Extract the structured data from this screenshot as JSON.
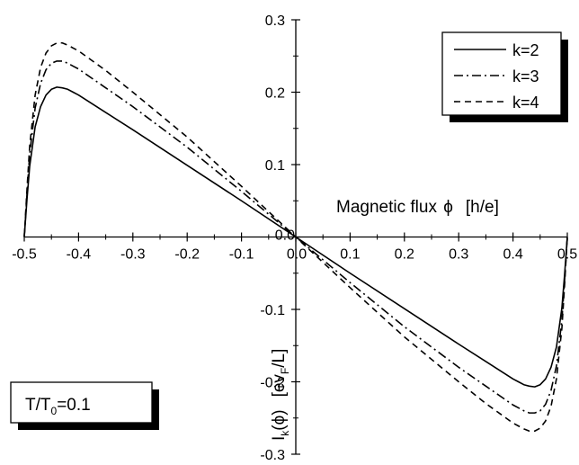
{
  "chart_data": {
    "type": "line",
    "xlim": [
      -0.5,
      0.5
    ],
    "ylim": [
      -0.3,
      0.3
    ],
    "x_ticks": [
      "-0.5",
      "-0.4",
      "-0.3",
      "-0.2",
      "-0.1",
      "0.0",
      "0.1",
      "0.2",
      "0.3",
      "0.4",
      "0.5"
    ],
    "y_ticks": [
      "-0.3",
      "-0.2",
      "-0.1",
      "0.0",
      "0.1",
      "0.2",
      "0.3"
    ],
    "x_tick_values": [
      -0.5,
      -0.4,
      -0.3,
      -0.2,
      -0.1,
      0.0,
      0.1,
      0.2,
      0.3,
      0.4,
      0.5
    ],
    "y_tick_values": [
      -0.3,
      -0.2,
      -0.1,
      0.0,
      0.1,
      0.2,
      0.3
    ],
    "xlabel": {
      "main": "Magnetic flux ",
      "symbol": "ϕ",
      "unit": "[h/e]"
    },
    "ylabel": {
      "main": "I",
      "sub": "k",
      "paren": "(ϕ)",
      "unit_open": "[ev",
      "unit_sub": "F",
      "unit_close": "/L]"
    },
    "annotation": {
      "lead": "T/T",
      "sub": "0",
      "tail": "=0.1"
    },
    "legend_position": "top-right",
    "grid": false,
    "series": [
      {
        "name": "k=2",
        "style": "solid",
        "color": "#000000",
        "x": [
          -0.5,
          -0.495,
          -0.49,
          -0.48,
          -0.47,
          -0.46,
          -0.45,
          -0.44,
          -0.43,
          -0.42,
          -0.41,
          -0.4,
          -0.35,
          -0.3,
          -0.2,
          -0.1,
          0.0,
          0.1,
          0.2,
          0.3,
          0.35,
          0.4,
          0.41,
          0.42,
          0.43,
          0.44,
          0.45,
          0.46,
          0.47,
          0.48,
          0.49,
          0.495,
          0.5
        ],
        "y": [
          0.0,
          0.052,
          0.098,
          0.152,
          0.18,
          0.196,
          0.204,
          0.207,
          0.206,
          0.204,
          0.2,
          0.196,
          0.172,
          0.148,
          0.099,
          0.05,
          0.0,
          -0.05,
          -0.099,
          -0.148,
          -0.172,
          -0.196,
          -0.2,
          -0.204,
          -0.206,
          -0.207,
          -0.204,
          -0.196,
          -0.18,
          -0.152,
          -0.098,
          -0.052,
          0.0
        ]
      },
      {
        "name": "k=3",
        "style": "dashdot",
        "color": "#000000",
        "x": [
          -0.5,
          -0.495,
          -0.49,
          -0.48,
          -0.47,
          -0.46,
          -0.45,
          -0.44,
          -0.43,
          -0.42,
          -0.41,
          -0.4,
          -0.35,
          -0.3,
          -0.2,
          -0.1,
          0.0,
          0.1,
          0.2,
          0.3,
          0.35,
          0.4,
          0.41,
          0.42,
          0.43,
          0.44,
          0.45,
          0.46,
          0.47,
          0.48,
          0.49,
          0.495,
          0.5
        ],
        "y": [
          0.0,
          0.06,
          0.115,
          0.178,
          0.212,
          0.231,
          0.24,
          0.243,
          0.243,
          0.24,
          0.236,
          0.232,
          0.206,
          0.18,
          0.124,
          0.063,
          0.0,
          -0.063,
          -0.124,
          -0.18,
          -0.206,
          -0.232,
          -0.236,
          -0.24,
          -0.243,
          -0.243,
          -0.24,
          -0.231,
          -0.212,
          -0.178,
          -0.115,
          -0.06,
          0.0
        ]
      },
      {
        "name": "k=4",
        "style": "dashed",
        "color": "#000000",
        "x": [
          -0.5,
          -0.495,
          -0.49,
          -0.48,
          -0.47,
          -0.46,
          -0.45,
          -0.44,
          -0.43,
          -0.42,
          -0.41,
          -0.4,
          -0.35,
          -0.3,
          -0.2,
          -0.1,
          0.0,
          0.1,
          0.2,
          0.3,
          0.35,
          0.4,
          0.41,
          0.42,
          0.43,
          0.44,
          0.45,
          0.46,
          0.47,
          0.48,
          0.49,
          0.495,
          0.5
        ],
        "y": [
          0.0,
          0.066,
          0.126,
          0.196,
          0.234,
          0.254,
          0.264,
          0.268,
          0.268,
          0.265,
          0.261,
          0.257,
          0.23,
          0.2,
          0.138,
          0.07,
          0.0,
          -0.07,
          -0.138,
          -0.2,
          -0.23,
          -0.257,
          -0.261,
          -0.265,
          -0.268,
          -0.268,
          -0.264,
          -0.254,
          -0.234,
          -0.196,
          -0.126,
          -0.066,
          0.0
        ]
      }
    ]
  }
}
